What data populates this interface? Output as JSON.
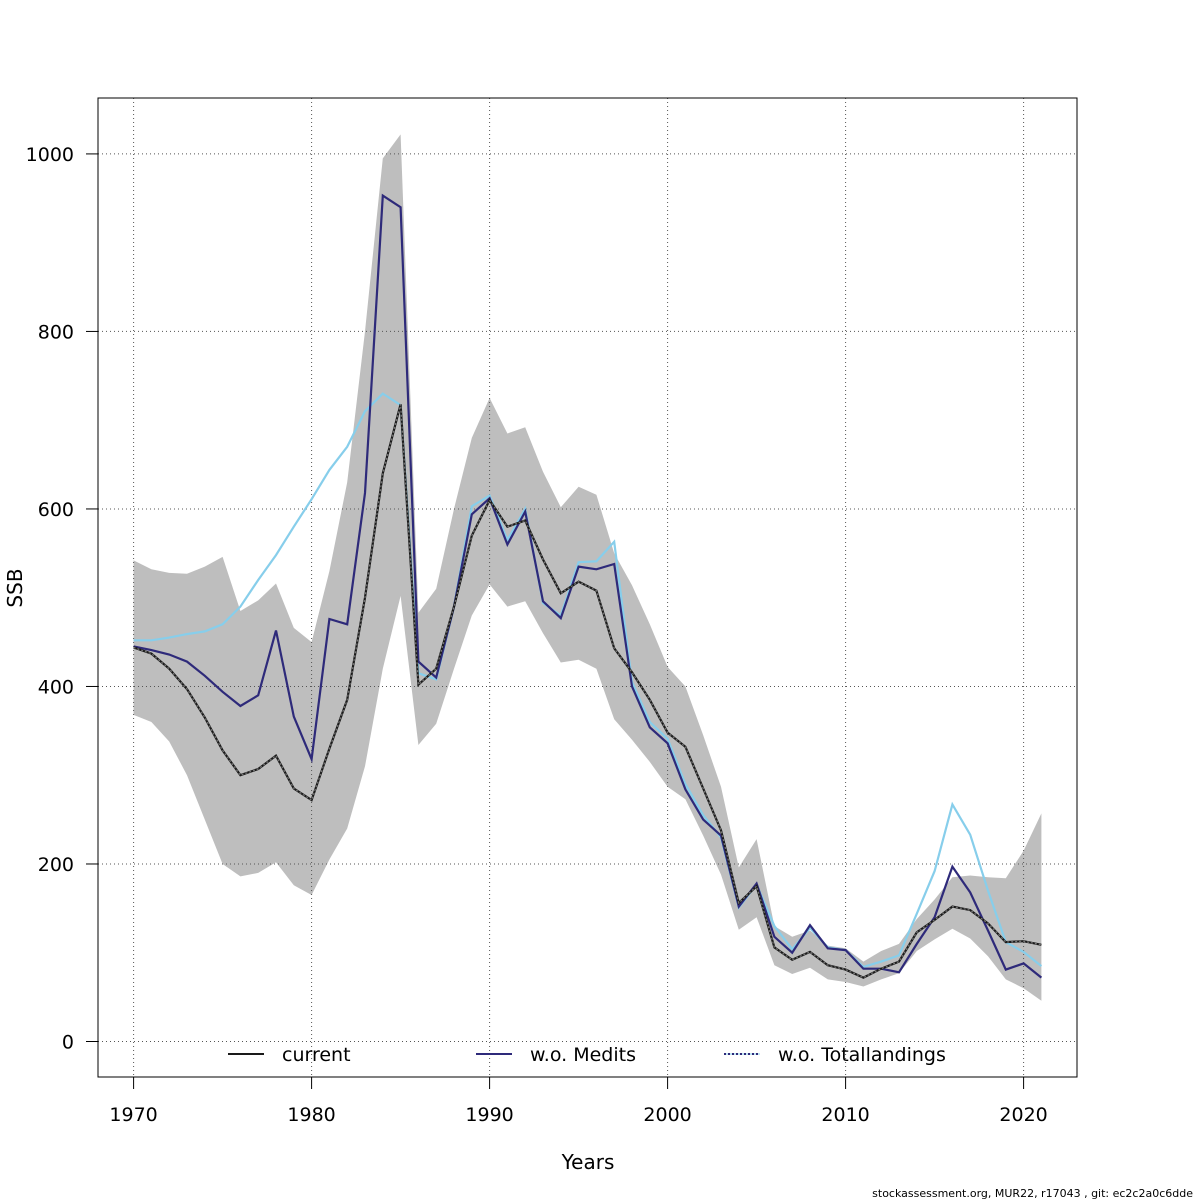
{
  "chart_data": {
    "type": "line",
    "xlabel": "Years",
    "ylabel": "SSB",
    "xlim": [
      1968,
      2023
    ],
    "ylim": [
      -40,
      1063
    ],
    "x_ticks": [
      1970,
      1980,
      1990,
      2000,
      2010,
      2020
    ],
    "y_ticks": [
      0,
      200,
      400,
      600,
      800,
      1000
    ],
    "grid": true,
    "legend_position": "bottom",
    "colors": {
      "band": "#bebebe",
      "current": "#1a1a1a",
      "medits": "#2e2a7a",
      "totallandings": "#87ceeb"
    },
    "years": [
      1970,
      1971,
      1972,
      1973,
      1974,
      1975,
      1976,
      1977,
      1978,
      1979,
      1980,
      1981,
      1982,
      1983,
      1984,
      1985,
      1986,
      1987,
      1988,
      1989,
      1990,
      1991,
      1992,
      1993,
      1994,
      1995,
      1996,
      1997,
      1998,
      1999,
      2000,
      2001,
      2002,
      2003,
      2004,
      2005,
      2006,
      2007,
      2008,
      2009,
      2010,
      2011,
      2012,
      2013,
      2014,
      2015,
      2016,
      2017,
      2018,
      2019,
      2020,
      2021
    ],
    "band_upper": [
      542,
      532,
      528,
      527,
      535,
      546,
      485,
      497,
      516,
      466,
      450,
      530,
      630,
      800,
      995,
      1022,
      483,
      510,
      600,
      680,
      725,
      685,
      692,
      642,
      602,
      625,
      616,
      550,
      514,
      470,
      422,
      400,
      345,
      287,
      196,
      228,
      130,
      118,
      125,
      108,
      105,
      90,
      102,
      110,
      138,
      160,
      185,
      187,
      185,
      184,
      215,
      257
    ],
    "band_lower": [
      368,
      360,
      338,
      300,
      250,
      200,
      186,
      190,
      202,
      176,
      165,
      205,
      240,
      310,
      420,
      502,
      334,
      358,
      420,
      480,
      515,
      490,
      496,
      460,
      427,
      430,
      420,
      363,
      340,
      315,
      287,
      273,
      232,
      188,
      126,
      140,
      86,
      76,
      83,
      70,
      67,
      62,
      70,
      77,
      102,
      115,
      127,
      116,
      96,
      70,
      60,
      46
    ],
    "series": [
      {
        "name": "current",
        "values": [
          444,
          437,
          420,
          397,
          365,
          328,
          300,
          307,
          322,
          285,
          272,
          330,
          385,
          500,
          640,
          718,
          402,
          420,
          490,
          570,
          610,
          580,
          587,
          543,
          505,
          518,
          508,
          443,
          416,
          385,
          348,
          332,
          285,
          238,
          156,
          175,
          106,
          92,
          101,
          86,
          81,
          72,
          82,
          90,
          123,
          137,
          152,
          148,
          133,
          112,
          113,
          109
        ]
      },
      {
        "name": "w.o. Medits",
        "values": [
          445,
          441,
          436,
          428,
          412,
          394,
          378,
          390,
          463,
          366,
          318,
          476,
          470,
          618,
          953,
          940,
          428,
          410,
          490,
          594,
          612,
          560,
          597,
          496,
          477,
          535,
          532,
          538,
          400,
          354,
          336,
          284,
          250,
          232,
          152,
          178,
          118,
          100,
          131,
          105,
          103,
          82,
          82,
          78,
          110,
          140,
          197,
          168,
          125,
          81,
          88,
          72
        ]
      },
      {
        "name": "w.o. Totallandings",
        "values": [
          452,
          452,
          455,
          459,
          462,
          470,
          490,
          520,
          548,
          580,
          611,
          644,
          670,
          710,
          730,
          717,
          415,
          408,
          490,
          603,
          615,
          565,
          600,
          494,
          480,
          540,
          541,
          563,
          405,
          360,
          341,
          290,
          255,
          230,
          151,
          177,
          130,
          104,
          128,
          106,
          103,
          84,
          90,
          97,
          144,
          192,
          267,
          233,
          170,
          112,
          101,
          85
        ]
      }
    ],
    "footer": "stockassessment.org, MUR22, r17043 , git: ec2c2a0c6dde"
  }
}
